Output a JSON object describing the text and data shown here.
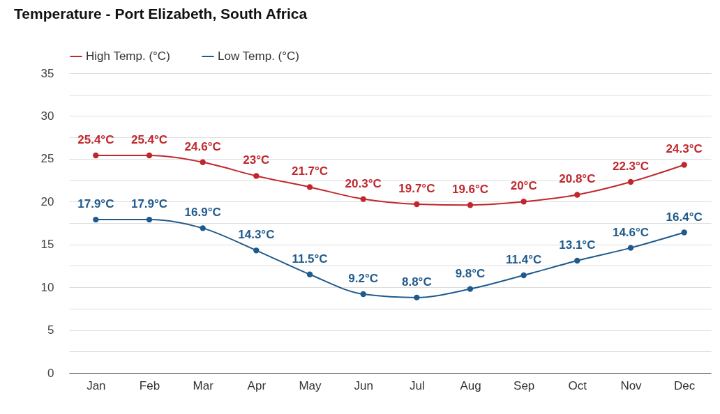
{
  "chart_data": {
    "type": "line",
    "title": "Temperature - Port Elizabeth, South Africa",
    "categories": [
      "Jan",
      "Feb",
      "Mar",
      "Apr",
      "May",
      "Jun",
      "Jul",
      "Aug",
      "Sep",
      "Oct",
      "Nov",
      "Dec"
    ],
    "series": [
      {
        "name": "High Temp. (°C)",
        "color": "#c0272d",
        "values": [
          25.4,
          25.4,
          24.6,
          23,
          21.7,
          20.3,
          19.7,
          19.6,
          20,
          20.8,
          22.3,
          24.3
        ],
        "value_labels": [
          "25.4°C",
          "25.4°C",
          "24.6°C",
          "23°C",
          "21.7°C",
          "20.3°C",
          "19.7°C",
          "19.6°C",
          "20°C",
          "20.8°C",
          "22.3°C",
          "24.3°C"
        ]
      },
      {
        "name": "Low Temp. (°C)",
        "color": "#1f5a8c",
        "values": [
          17.9,
          17.9,
          16.9,
          14.3,
          11.5,
          9.2,
          8.8,
          9.8,
          11.4,
          13.1,
          14.6,
          16.4
        ],
        "value_labels": [
          "17.9°C",
          "17.9°C",
          "16.9°C",
          "14.3°C",
          "11.5°C",
          "9.2°C",
          "8.8°C",
          "9.8°C",
          "11.4°C",
          "13.1°C",
          "14.6°C",
          "16.4°C"
        ]
      }
    ],
    "ylim": [
      0,
      35
    ],
    "yticks": [
      0,
      {
        "value": 2.5,
        "label": null
      },
      5,
      {
        "value": 7.5,
        "label": null
      },
      10,
      {
        "value": 12.5,
        "label": null
      },
      15,
      {
        "value": 17.5,
        "label": null
      },
      20,
      {
        "value": 22.5,
        "label": null
      },
      25,
      {
        "value": 27.5,
        "label": null
      },
      30,
      {
        "value": 32.5,
        "label": null
      },
      35
    ],
    "grid": "y",
    "legend": "top left",
    "marker": "circle",
    "line_style": "solid"
  }
}
